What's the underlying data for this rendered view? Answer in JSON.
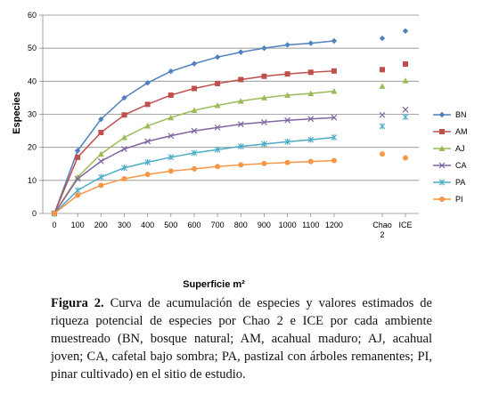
{
  "chart_data": {
    "type": "line",
    "xlabel": "Superficie m²",
    "ylabel": "Especies",
    "ylim": [
      0,
      60
    ],
    "yticks": [
      0,
      10,
      20,
      30,
      40,
      50,
      60
    ],
    "x": [
      0,
      100,
      200,
      300,
      400,
      500,
      600,
      700,
      800,
      900,
      1000,
      1100,
      1200
    ],
    "x_tick_labels": [
      "0",
      "100",
      "200",
      "300",
      "400",
      "500",
      "600",
      "700",
      "800",
      "900",
      "1000",
      "1100",
      "1200"
    ],
    "estimator_labels": [
      "Chao 2",
      "ICE"
    ],
    "grid": "horizontal",
    "legend_position": "right",
    "series": [
      {
        "name": "BN",
        "color": "#4f81bd",
        "marker": "diamond",
        "values": [
          0,
          19,
          28.5,
          35,
          39.5,
          43,
          45.3,
          47.3,
          48.8,
          50,
          51,
          51.5,
          52.2
        ],
        "chao2": 53,
        "ice": 55.2
      },
      {
        "name": "AM",
        "color": "#c0504d",
        "marker": "square",
        "values": [
          0,
          17,
          24.5,
          29.8,
          33,
          35.8,
          37.8,
          39.3,
          40.5,
          41.5,
          42.2,
          42.7,
          43.1
        ],
        "chao2": 43.5,
        "ice": 45.2
      },
      {
        "name": "AJ",
        "color": "#9bbb59",
        "marker": "triangle",
        "values": [
          0,
          11,
          18,
          23,
          26.5,
          29,
          31.2,
          32.7,
          34,
          35,
          35.8,
          36.3,
          37
        ],
        "chao2": 38.5,
        "ice": 40.2
      },
      {
        "name": "CA",
        "color": "#8064a2",
        "marker": "x",
        "values": [
          0,
          10.5,
          15.8,
          19.5,
          21.8,
          23.5,
          25,
          26,
          27,
          27.6,
          28.2,
          28.6,
          29
        ],
        "chao2": 29.8,
        "ice": 31.4
      },
      {
        "name": "PA",
        "color": "#4bacc6",
        "marker": "star",
        "values": [
          0,
          7,
          11,
          13.8,
          15.5,
          17,
          18.3,
          19.3,
          20.3,
          21,
          21.7,
          22.3,
          23
        ],
        "chao2": 26.4,
        "ice": 29.2
      },
      {
        "name": "PI",
        "color": "#f79646",
        "marker": "circle",
        "values": [
          0,
          5.5,
          8.5,
          10.5,
          11.8,
          12.8,
          13.5,
          14.2,
          14.7,
          15.1,
          15.4,
          15.7,
          16
        ],
        "chao2": 18,
        "ice": 16.8
      }
    ]
  },
  "caption": {
    "label": "Figura 2.",
    "text": " Curva de acumulación de especies y valores estimados de riqueza potencial de especies por Chao 2 e ICE por cada ambiente muestreado (BN, bosque natural; AM, acahual maduro; AJ, acahual joven; CA, cafetal bajo sombra; PA, pastizal con árboles remanentes; PI, pinar cultivado) en el sitio de estudio."
  }
}
